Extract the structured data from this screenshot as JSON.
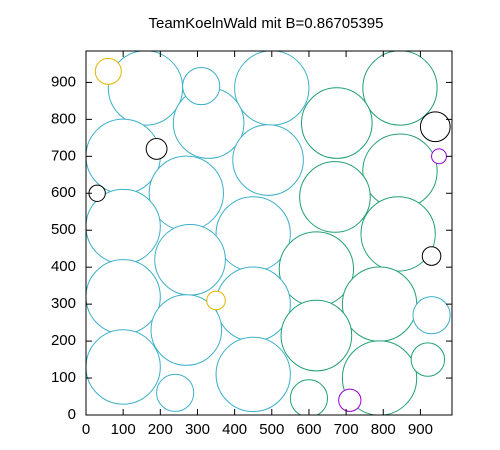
{
  "chart_data": {
    "type": "circles",
    "title": "TeamKoelnWald mit B=0.86705395",
    "x": [
      160,
      500,
      845,
      330,
      675,
      100,
      490,
      845,
      270,
      670,
      100,
      450,
      840,
      280,
      620,
      100,
      450,
      790,
      270,
      620,
      100,
      450,
      790,
      310,
      940,
      30,
      930,
      240,
      600,
      920,
      930,
      710,
      60,
      950,
      350,
      190
    ],
    "y": [
      885,
      885,
      885,
      790,
      790,
      700,
      690,
      660,
      600,
      590,
      510,
      490,
      490,
      420,
      395,
      320,
      300,
      300,
      230,
      215,
      130,
      110,
      100,
      890,
      780,
      600,
      270,
      60,
      45,
      150,
      430,
      40,
      930,
      700,
      310,
      720
    ],
    "r": [
      100,
      100,
      100,
      95,
      95,
      100,
      95,
      100,
      100,
      95,
      100,
      100,
      100,
      95,
      100,
      100,
      100,
      100,
      95,
      95,
      100,
      100,
      100,
      50,
      40,
      22,
      50,
      50,
      50,
      45,
      25,
      30,
      35,
      20,
      25,
      28
    ],
    "colors": [
      "#3cb0c8",
      "#3cb0c8",
      "#20a070",
      "#3cb0c8",
      "#20a070",
      "#3cb0c8",
      "#3cb0c8",
      "#20a070",
      "#3cb0c8",
      "#20a070",
      "#3cb0c8",
      "#3cb0c8",
      "#20a070",
      "#3cb0c8",
      "#20a070",
      "#3cb0c8",
      "#3cb0c8",
      "#20a070",
      "#3cb0c8",
      "#20a070",
      "#3cb0c8",
      "#3cb0c8",
      "#20a070",
      "#3cb0c8",
      "#000000",
      "#000000",
      "#3cb0c8",
      "#3cb0c8",
      "#20a070",
      "#20a070",
      "#000000",
      "#9400d3",
      "#e6b400",
      "#9400d3",
      "#e6b400",
      "#000000"
    ],
    "xlim": [
      0,
      985
    ],
    "ylim": [
      0,
      985
    ],
    "xticks": [
      0,
      100,
      200,
      300,
      400,
      500,
      600,
      700,
      800,
      900
    ],
    "yticks": [
      0,
      100,
      200,
      300,
      400,
      500,
      600,
      700,
      800,
      900
    ]
  }
}
